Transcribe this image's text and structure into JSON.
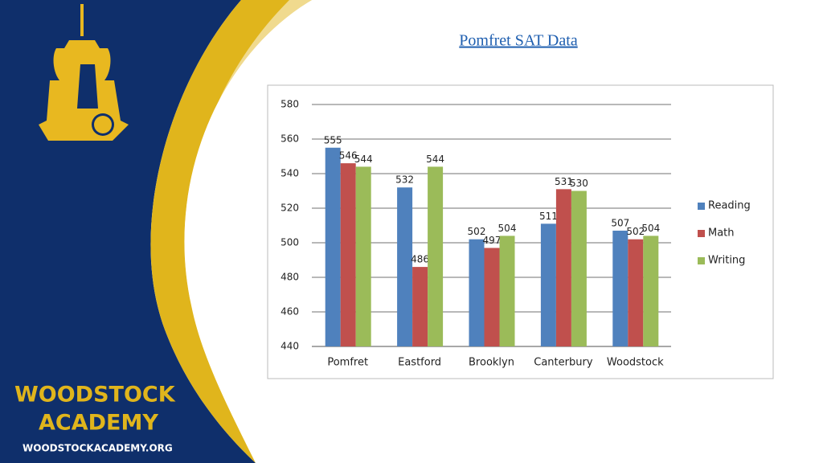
{
  "chart_data": {
    "type": "bar",
    "title": "Pomfret SAT Data",
    "categories": [
      "Pomfret",
      "Eastford",
      "Brooklyn",
      "Canterbury",
      "Woodstock"
    ],
    "series": [
      {
        "name": "Reading",
        "color": "#4f81bd",
        "values": [
          555,
          532,
          502,
          511,
          507
        ]
      },
      {
        "name": "Math",
        "color": "#c0504d",
        "values": [
          546,
          486,
          497,
          531,
          502
        ]
      },
      {
        "name": "Writing",
        "color": "#9bbb59",
        "values": [
          544,
          544,
          504,
          530,
          504
        ]
      }
    ],
    "ylim": [
      440,
      580
    ],
    "yticks": [
      440,
      460,
      480,
      500,
      520,
      540,
      560,
      580
    ],
    "grid": true,
    "legend": "right"
  },
  "branding": {
    "line1": "WOODSTOCK",
    "line2": "ACADEMY",
    "url": "WOODSTOCKACADEMY.ORG"
  }
}
